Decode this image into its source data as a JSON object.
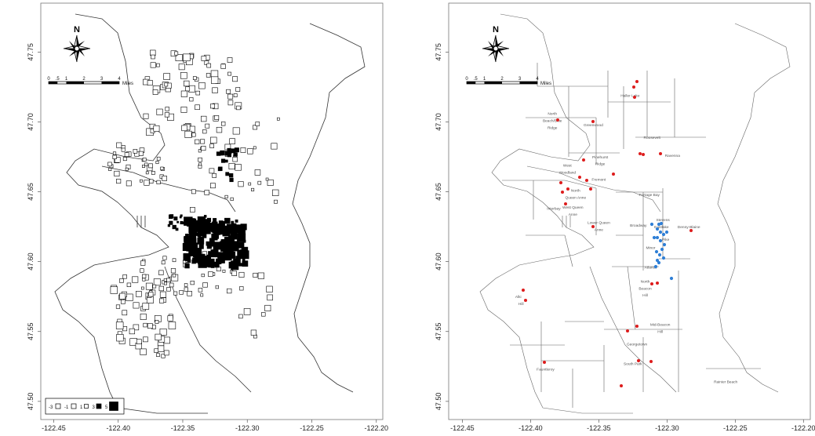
{
  "north_label": "N",
  "scale_bar": {
    "ticks": [
      "0",
      ".5",
      "1",
      "2",
      "3",
      "4"
    ],
    "unit": "Miles"
  },
  "axes": {
    "x_ticks": [
      "-122.45",
      "-122.40",
      "-122.35",
      "-122.30",
      "-122.25",
      "-122.20"
    ],
    "y_ticks": [
      "47.50",
      "47.55",
      "47.60",
      "47.65",
      "47.70",
      "47.75"
    ],
    "x_values": [
      -122.45,
      -122.4,
      -122.35,
      -122.3,
      -122.25,
      -122.2
    ],
    "y_values": [
      47.5,
      47.55,
      47.6,
      47.65,
      47.7,
      47.75
    ],
    "xlim": [
      -122.46,
      -122.195
    ],
    "ylim": [
      47.487,
      47.785
    ]
  },
  "left_map": {
    "legend": {
      "values": [
        "-3",
        "-1",
        "1",
        "3",
        "5"
      ],
      "fills": [
        "#ffffff",
        "#ffffff",
        "#ffffff",
        "#000000",
        "#000000"
      ]
    },
    "colors": {
      "positive": "#000000",
      "negative": "#ffffff",
      "stroke": "#000000"
    }
  },
  "right_map": {
    "colors": {
      "red_points": "#dd1c1c",
      "blue_points": "#2f7fd6",
      "boundaries": "#555555"
    },
    "neighborhoods": [
      {
        "name": "Haller Lake",
        "lon": -122.327,
        "lat": 47.718
      },
      {
        "name": "North",
        "lon": -122.384,
        "lat": 47.705
      },
      {
        "name": "Beach/Blue",
        "lon": -122.384,
        "lat": 47.7
      },
      {
        "name": "Ridge",
        "lon": -122.384,
        "lat": 47.695
      },
      {
        "name": "Greenwood",
        "lon": -122.354,
        "lat": 47.697
      },
      {
        "name": "Roosevelt",
        "lon": -122.311,
        "lat": 47.688
      },
      {
        "name": "Pinehurst",
        "lon": -122.349,
        "lat": 47.674
      },
      {
        "name": "Ridge",
        "lon": -122.349,
        "lat": 47.669
      },
      {
        "name": "Ravenna",
        "lon": -122.296,
        "lat": 47.675
      },
      {
        "name": "West",
        "lon": -122.373,
        "lat": 47.668
      },
      {
        "name": "Woodland",
        "lon": -122.373,
        "lat": 47.663
      },
      {
        "name": "Fremont",
        "lon": -122.35,
        "lat": 47.658
      },
      {
        "name": "North",
        "lon": -122.367,
        "lat": 47.65
      },
      {
        "name": "Queen Anne",
        "lon": -122.367,
        "lat": 47.645
      },
      {
        "name": "Portage Bay",
        "lon": -122.313,
        "lat": 47.647
      },
      {
        "name": "Interbay",
        "lon": -122.383,
        "lat": 47.637
      },
      {
        "name": "West Queen",
        "lon": -122.369,
        "lat": 47.638
      },
      {
        "name": "Anne",
        "lon": -122.369,
        "lat": 47.633
      },
      {
        "name": "Stevens",
        "lon": -122.303,
        "lat": 47.629
      },
      {
        "name": "Broadway",
        "lon": -122.321,
        "lat": 47.625
      },
      {
        "name": "Eastlake",
        "lon": -122.304,
        "lat": 47.624
      },
      {
        "name": "Denny-Blaine",
        "lon": -122.284,
        "lat": 47.624
      },
      {
        "name": "Lower Queen",
        "lon": -122.35,
        "lat": 47.627
      },
      {
        "name": "Anne",
        "lon": -122.35,
        "lat": 47.622
      },
      {
        "name": "Pike",
        "lon": -122.301,
        "lat": 47.615
      },
      {
        "name": "Minor",
        "lon": -122.312,
        "lat": 47.609
      },
      {
        "name": "Atlantic",
        "lon": -122.312,
        "lat": 47.595
      },
      {
        "name": "North",
        "lon": -122.316,
        "lat": 47.585
      },
      {
        "name": "Beacon",
        "lon": -122.316,
        "lat": 47.58
      },
      {
        "name": "Hill",
        "lon": -122.316,
        "lat": 47.575
      },
      {
        "name": "Alki",
        "lon": -122.409,
        "lat": 47.574
      },
      {
        "name": "Hill",
        "lon": -122.407,
        "lat": 47.569
      },
      {
        "name": "Mid-Beacon",
        "lon": -122.305,
        "lat": 47.554
      },
      {
        "name": "Hill",
        "lon": -122.305,
        "lat": 47.549
      },
      {
        "name": "Georgetown",
        "lon": -122.322,
        "lat": 47.54
      },
      {
        "name": "South Park",
        "lon": -122.325,
        "lat": 47.526
      },
      {
        "name": "Fauntleroy",
        "lon": -122.389,
        "lat": 47.522
      },
      {
        "name": "Rainier Beach",
        "lon": -122.257,
        "lat": 47.513
      }
    ]
  }
}
